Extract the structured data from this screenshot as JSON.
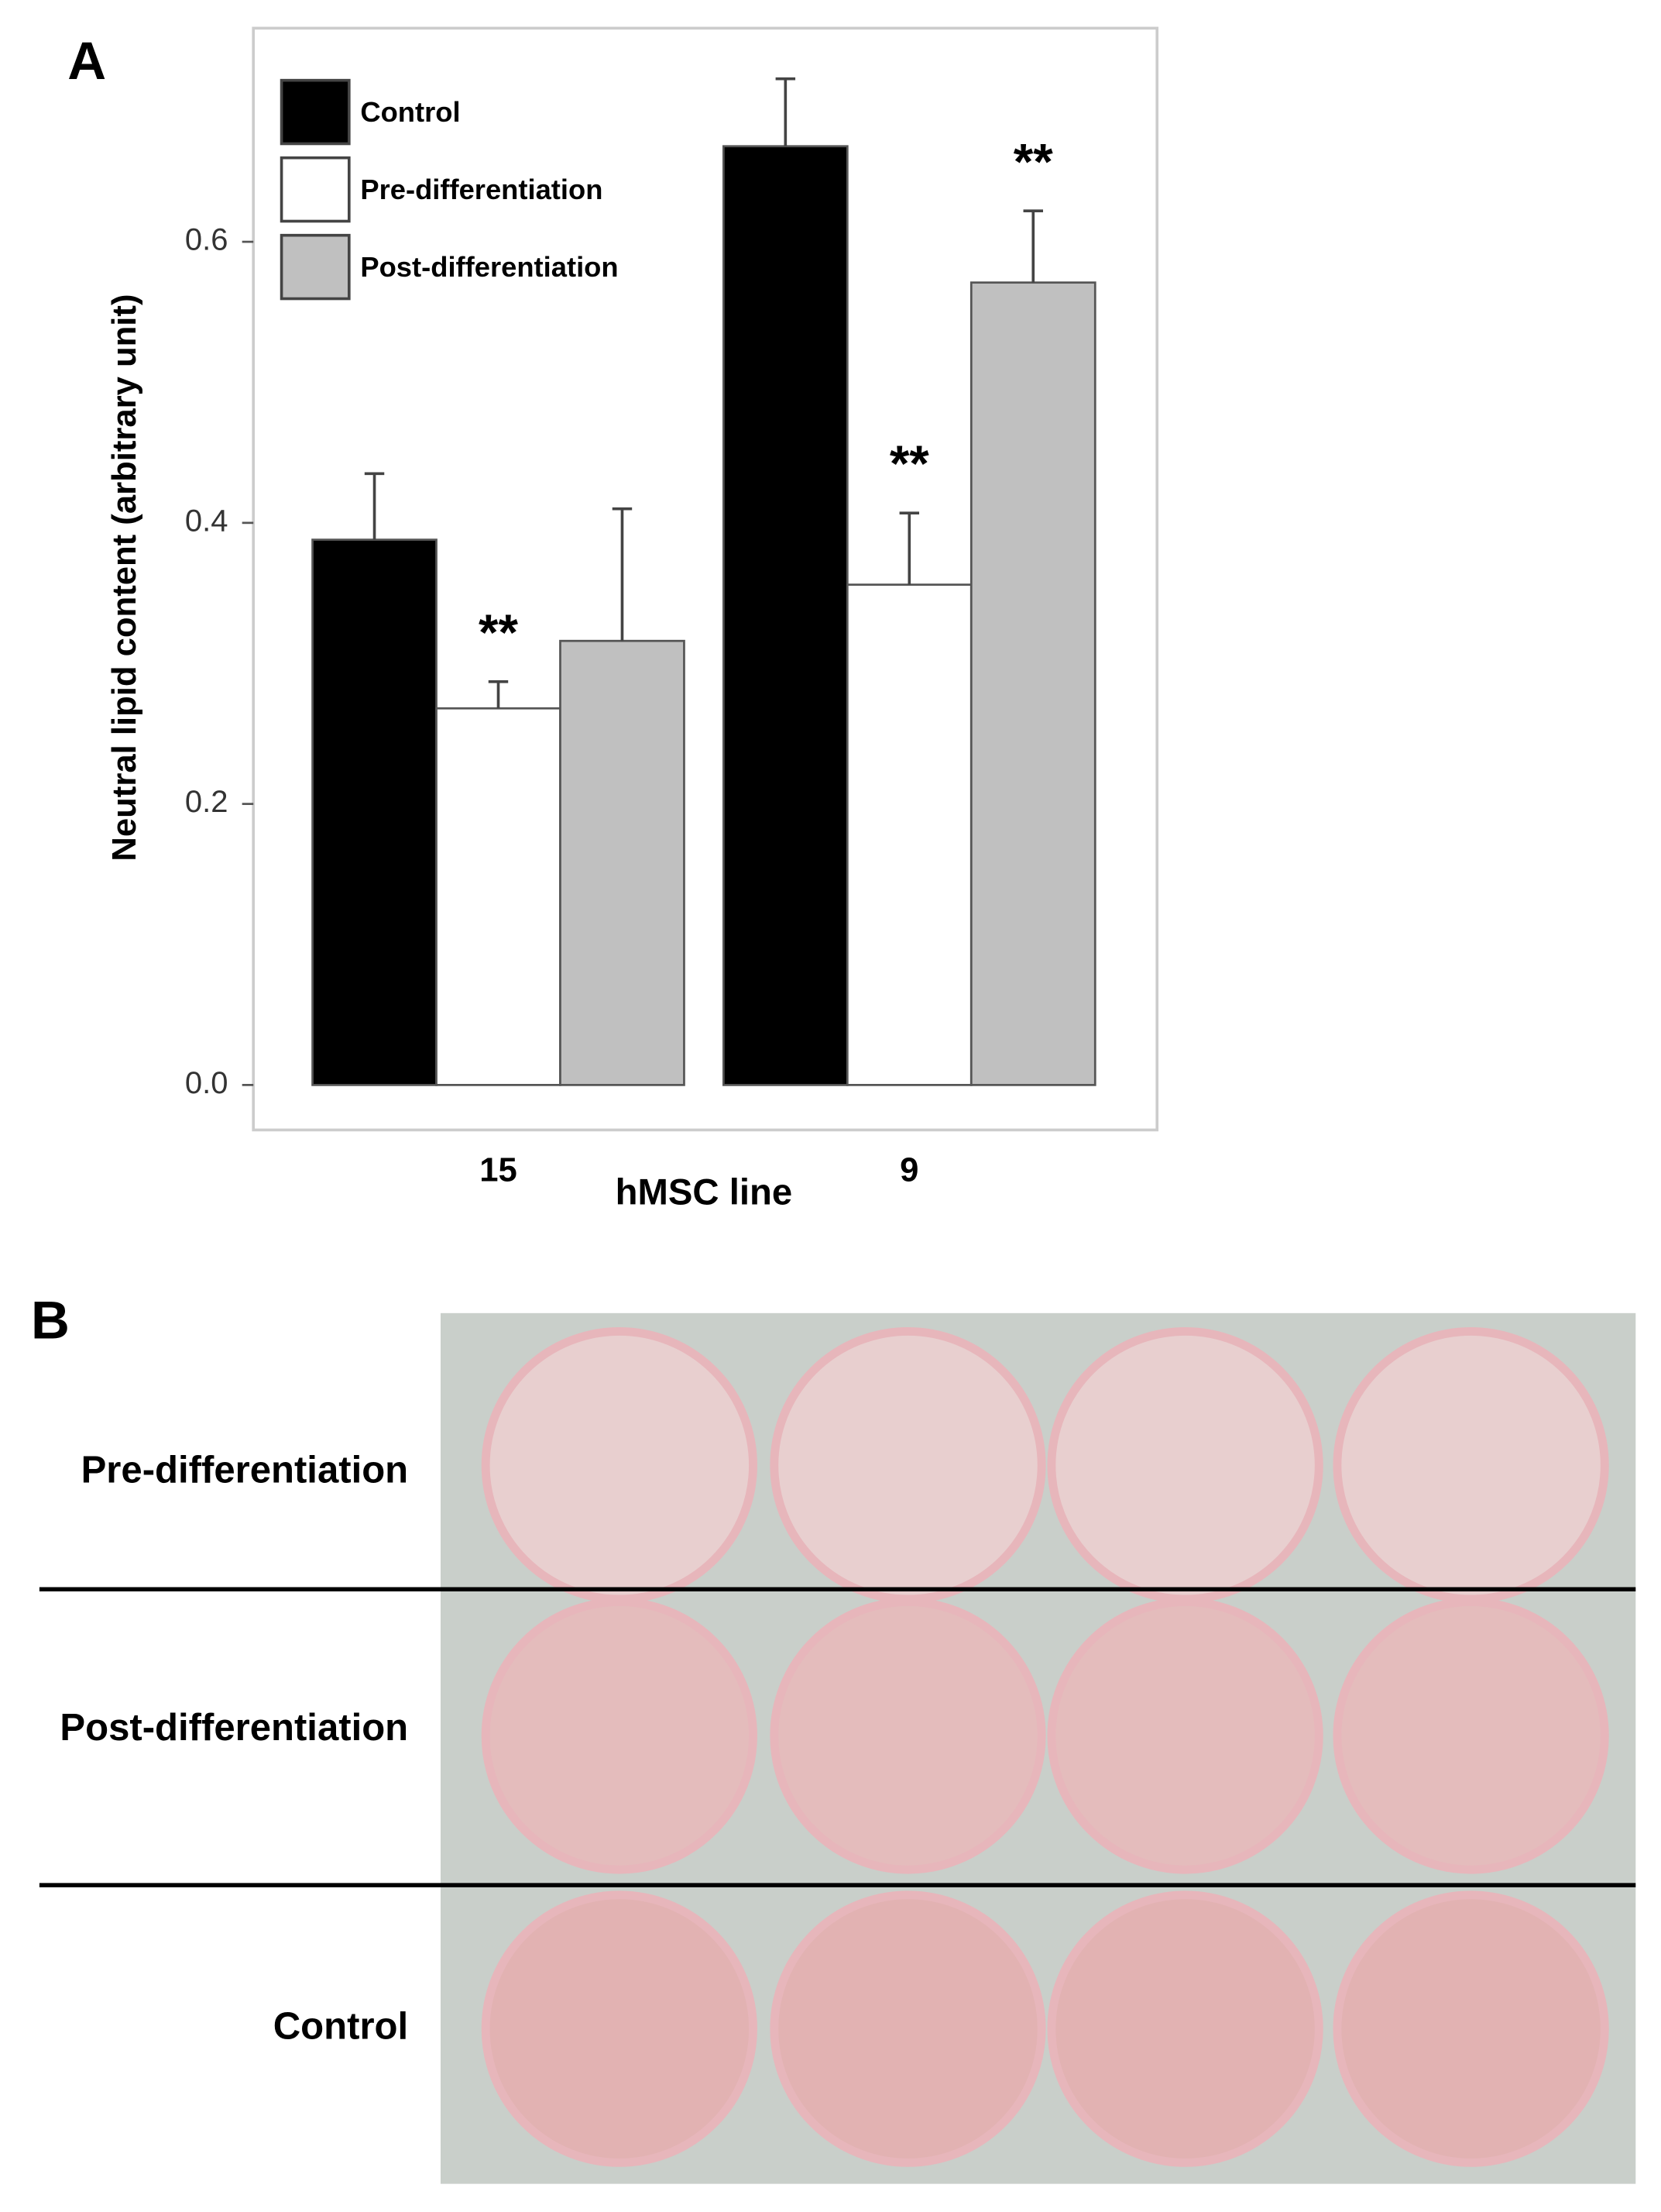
{
  "panel_labels": [
    "A",
    "B"
  ],
  "chart_data": {
    "type": "bar",
    "x_label": "hMSC line",
    "y_label": "Neutral lipid content (arbitrary unit)",
    "categories": [
      "15",
      "9"
    ],
    "series": [
      {
        "name": "Control",
        "color": "#000000",
        "values": [
          0.388,
          0.668
        ],
        "errors": [
          0.047,
          0.048
        ]
      },
      {
        "name": "Pre-differentiation",
        "color": "#ffffff",
        "values": [
          0.268,
          0.356
        ],
        "errors": [
          0.019,
          0.051
        ]
      },
      {
        "name": "Post-differentiation",
        "color": "#c0c0c0",
        "values": [
          0.316,
          0.571
        ],
        "errors": [
          0.094,
          0.051
        ]
      }
    ],
    "annotations": [
      {
        "text": "**",
        "x": "15",
        "series": "Pre-differentiation"
      },
      {
        "text": "**",
        "x": "9",
        "series": "Pre-differentiation"
      },
      {
        "text": "**",
        "x": "9",
        "series": "Post-differentiation"
      }
    ],
    "ylim": [
      -0.032,
      0.752
    ],
    "yticks": [
      {
        "value": 0,
        "label": "0.0"
      },
      0.2,
      0.4,
      0.6
    ],
    "legend": "upper left"
  },
  "photo_rows": [
    "Pre-differentiation",
    "Post-differentiation",
    "Control"
  ]
}
